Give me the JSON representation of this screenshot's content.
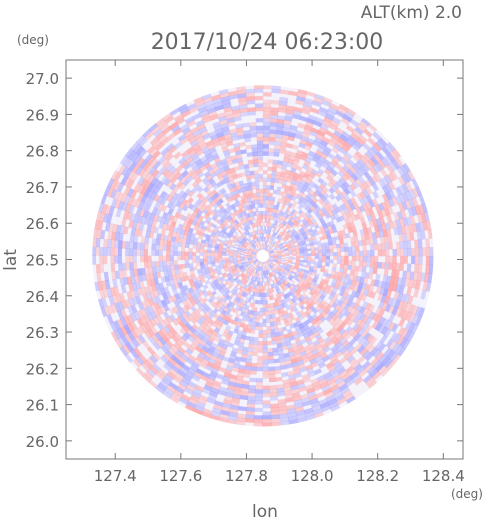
{
  "header": {
    "altitude_label": "ALT(km) 2.0",
    "timestamp": "2017/10/24 06:23:00"
  },
  "chart_data": {
    "type": "heatmap",
    "title": "2017/10/24 06:23:00",
    "xlabel": "lon",
    "ylabel": "lat",
    "x_unit": "(deg)",
    "y_unit": "(deg)",
    "xlim": [
      127.25,
      128.46
    ],
    "ylim": [
      25.95,
      27.05
    ],
    "x_ticks": [
      "127.4",
      "127.6",
      "127.8",
      "128.0",
      "128.2",
      "128.4"
    ],
    "y_ticks": [
      "26.0",
      "26.1",
      "26.2",
      "26.3",
      "26.4",
      "26.5",
      "26.6",
      "26.7",
      "26.8",
      "26.9",
      "27.0"
    ],
    "grid": false,
    "radar_center": {
      "lon": 127.85,
      "lat": 26.51
    },
    "radar_radius_deg": 0.52,
    "colors": {
      "positive": "#ff9b9b",
      "negative": "#9b9bff",
      "neutral": "#ffffff",
      "axis": "#777777",
      "text": "#666666"
    }
  }
}
